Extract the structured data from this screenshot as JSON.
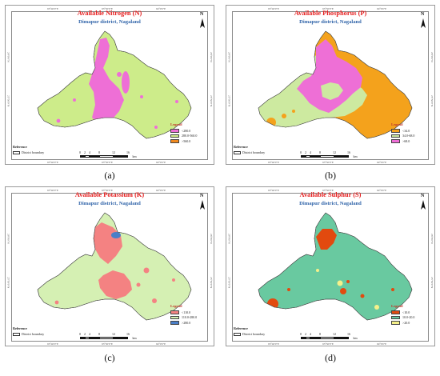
{
  "panels": [
    {
      "id": "a",
      "title": "Available Nitrogen (N)",
      "subtitle": "Dimapur district, Nagaland",
      "caption": "(a)",
      "base_color": "#cdec8a",
      "legend": {
        "title": "Legend",
        "items": [
          {
            "label": "<280.0",
            "color": "#ee6fd6"
          },
          {
            "label": "280.0-560.0",
            "color": "#d4ee8c"
          },
          {
            "label": ">560.0",
            "color": "#f0891e"
          }
        ]
      },
      "reference": {
        "title": "Reference",
        "label": "District boundary"
      }
    },
    {
      "id": "b",
      "title": "Available Phosphorus (P)",
      "subtitle": "Dimapur district, Nagaland",
      "caption": "(b)",
      "base_color": "#f4a21c",
      "legend": {
        "title": "Legend",
        "items": [
          {
            "label": "<34.0",
            "color": "#f4a21c"
          },
          {
            "label": "34.0-68.0",
            "color": "#cdeaa0"
          },
          {
            "label": ">68.0",
            "color": "#ee6fd6"
          }
        ]
      },
      "reference": {
        "title": "Reference",
        "label": "District boundary"
      }
    },
    {
      "id": "c",
      "title": "Available Potassium (K)",
      "subtitle": "Dimapur district, Nagaland",
      "caption": "(c)",
      "base_color": "#d5f0b3",
      "legend": {
        "title": "Legend",
        "items": [
          {
            "label": "<110.0",
            "color": "#f48282"
          },
          {
            "label": "110.0-280.0",
            "color": "#d5f0b3"
          },
          {
            "label": ">280.0",
            "color": "#4a7fc8"
          }
        ]
      },
      "reference": {
        "title": "Reference",
        "label": "District boundary"
      }
    },
    {
      "id": "d",
      "title": "Available Sulphur (S)",
      "subtitle": "Dimapur district, Nagaland",
      "caption": "(d)",
      "base_color": "#69c9a0",
      "legend": {
        "title": "Legend",
        "items": [
          {
            "label": "<10.0",
            "color": "#e24a0f"
          },
          {
            "label": "10.0-20.0",
            "color": "#69c9a0"
          },
          {
            "label": ">20.0",
            "color": "#f5f08a"
          }
        ]
      },
      "reference": {
        "title": "Reference",
        "label": "District boundary"
      }
    }
  ],
  "north_label": "N",
  "scale": {
    "labels": [
      "0",
      "2",
      "4",
      "8",
      "12",
      "16"
    ],
    "unit": "km"
  },
  "ticks": {
    "top": [
      "93°40'0\"E",
      "93°50'0\"E",
      "94°0'0\"E"
    ],
    "bottom": [
      "93°40'0\"E",
      "93°50'0\"E",
      "94°0'0\"E"
    ],
    "left": [
      "26°0'0\"N",
      "25°50'0\"N"
    ],
    "right": [
      "26°0'0\"N",
      "25°50'0\"N"
    ]
  }
}
